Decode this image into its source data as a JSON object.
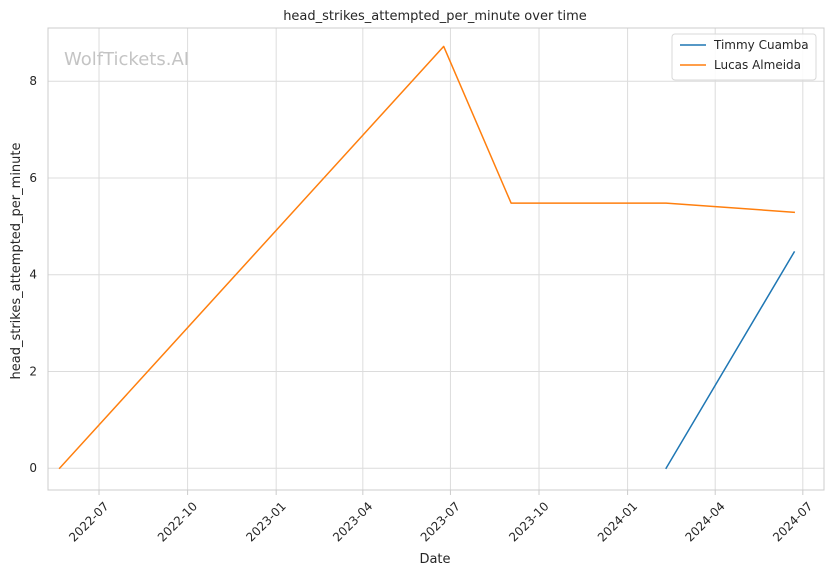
{
  "chart_data": {
    "type": "line",
    "title": "head_strikes_attempted_per_minute over time",
    "xlabel": "Date",
    "ylabel": "head_strikes_attempted_per_minute",
    "watermark": "WolfTickets.AI",
    "x_ticks": [
      "2022-07",
      "2022-10",
      "2023-01",
      "2023-04",
      "2023-07",
      "2023-10",
      "2024-01",
      "2024-04",
      "2024-07"
    ],
    "y_ticks": [
      0,
      2,
      4,
      6,
      8
    ],
    "xlim": [
      "2022-05-09",
      "2024-07-23"
    ],
    "ylim": [
      -0.45,
      9.1
    ],
    "grid": true,
    "legend_position": "top-right",
    "series": [
      {
        "name": "Timmy Cuamba",
        "color": "#1f77b4",
        "points": [
          {
            "x": "2024-02-10",
            "y": 0.0
          },
          {
            "x": "2024-06-22",
            "y": 4.47
          }
        ]
      },
      {
        "name": "Lucas Almeida",
        "color": "#ff7f0e",
        "points": [
          {
            "x": "2022-05-21",
            "y": 0.0
          },
          {
            "x": "2023-06-24",
            "y": 8.72
          },
          {
            "x": "2023-09-02",
            "y": 5.48
          },
          {
            "x": "2024-02-10",
            "y": 5.48
          },
          {
            "x": "2024-06-22",
            "y": 5.29
          }
        ]
      }
    ]
  }
}
